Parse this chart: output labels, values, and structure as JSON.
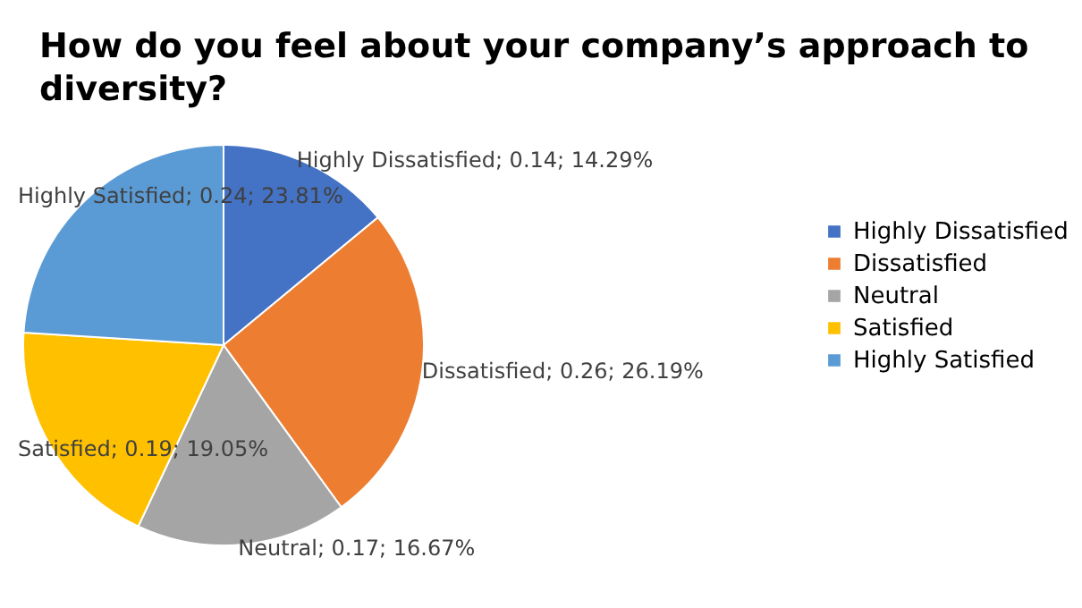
{
  "chart_data": {
    "type": "pie",
    "title": "How do you feel about your company’s approach to diversity?",
    "categories": [
      "Highly Dissatisfied",
      "Dissatisfied",
      "Neutral",
      "Satisfied",
      "Highly Satisfied"
    ],
    "values": [
      0.14,
      0.26,
      0.17,
      0.19,
      0.24
    ],
    "value_labels": [
      "Highly Dissatisfied; 0.14; 14.29%",
      "Dissatisfied; 0.26; 26.19%",
      "Neutral; 0.17; 16.67%",
      "Satisfied; 0.19; 19.05%",
      "Highly Satisfied; 0.24; 23.81%"
    ],
    "colors": [
      "#4472c4",
      "#ed7d31",
      "#a5a5a5",
      "#ffc000",
      "#5b9bd5"
    ],
    "legend": "right"
  }
}
